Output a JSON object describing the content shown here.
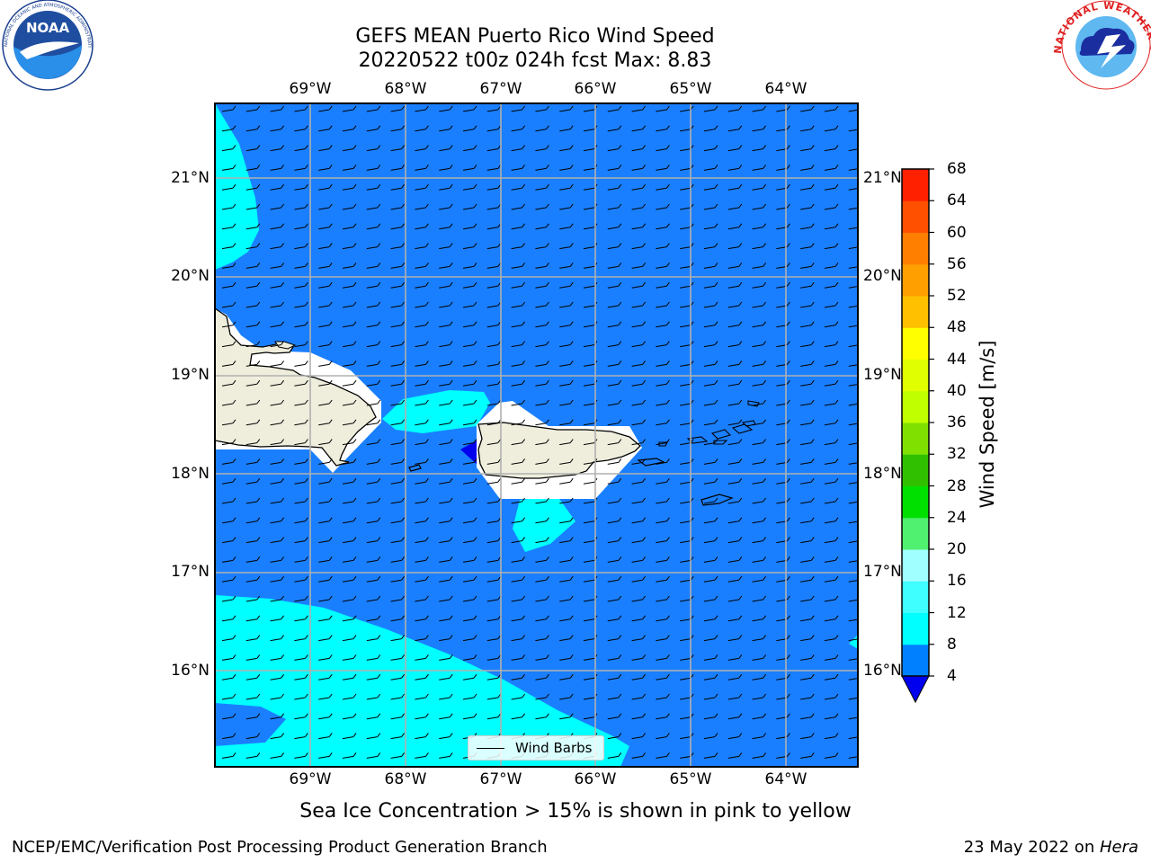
{
  "title_line1": "GEFS MEAN Puerto Rico Wind Speed",
  "title_line2": "20220522 t00z 024h fcst   Max: 8.83",
  "lon_labels": [
    "69°W",
    "68°W",
    "67°W",
    "66°W",
    "65°W",
    "64°W"
  ],
  "lat_labels": [
    "21°N",
    "20°N",
    "19°N",
    "18°N",
    "17°N",
    "16°N"
  ],
  "colorbar": {
    "label": "Wind Speed [m/s]",
    "ticks": [
      "4",
      "8",
      "12",
      "16",
      "20",
      "24",
      "28",
      "32",
      "36",
      "40",
      "44",
      "48",
      "52",
      "56",
      "60",
      "64",
      "68"
    ],
    "colors": [
      "#0080ff",
      "#00ffff",
      "#40ffff",
      "#a0ffff",
      "#50f070",
      "#00e000",
      "#30c000",
      "#80e000",
      "#c0ff00",
      "#e0ff00",
      "#ffff00",
      "#ffc000",
      "#ffa000",
      "#ff8000",
      "#ff5000",
      "#ff2000"
    ],
    "extend_color": "#0000ee"
  },
  "legend_label": "Wind Barbs",
  "note": "Sea Ice Concentration > 15% is shown in pink to yellow",
  "footer_left": "NCEP/EMC/Verification Post Processing Product Generation Branch",
  "footer_date": "23 May 2022 on ",
  "footer_machine": "Hera",
  "logos": {
    "noaa_text": "NOAA",
    "noaa_ring": "NATIONAL OCEANIC AND ATMOSPHERIC ADMINISTRATION · U.S. DEPARTMENT OF COMMERCE",
    "nws_ring": "NATIONAL WEATHER SERVICE"
  },
  "colors": {
    "ocean_main": "#1a7fff",
    "ocean_cyan": "#00ffff",
    "ocean_dark": "#0000ee",
    "land": "#efeedd",
    "grid": "#b0b0b0"
  }
}
